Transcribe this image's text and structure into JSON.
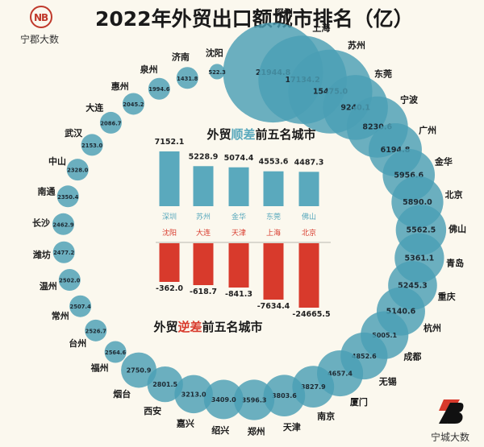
{
  "header": {
    "title": "2022年外贸出口额城市排名（亿）",
    "brand_left": "宁郡大数",
    "brand_right": "宁城大数"
  },
  "colors": {
    "bubble": "#4a9fb5",
    "surplus_bar": "#5aa9bd",
    "deficit_bar": "#d83a2c",
    "title_surplus_accent": "#5aa9bd",
    "title_deficit_accent": "#d83a2c",
    "background": "#fbf8ee"
  },
  "chart_data": [
    {
      "type": "bubble",
      "title": "2022年外贸出口额城市排名（亿）",
      "unit": "亿",
      "layout": "ring",
      "cities": [
        {
          "name": "深圳",
          "value": 21944.8
        },
        {
          "name": "上海",
          "value": 17134.2
        },
        {
          "name": "苏州",
          "value": 15475.0
        },
        {
          "name": "东莞",
          "value": 9240.1
        },
        {
          "name": "宁波",
          "value": 8230.6
        },
        {
          "name": "广州",
          "value": 6194.8
        },
        {
          "name": "金华",
          "value": 5956.6
        },
        {
          "name": "北京",
          "value": 5890.0
        },
        {
          "name": "佛山",
          "value": 5562.5
        },
        {
          "name": "青岛",
          "value": 5361.1
        },
        {
          "name": "重庆",
          "value": 5245.3
        },
        {
          "name": "杭州",
          "value": 5140.6
        },
        {
          "name": "成都",
          "value": 5005.1
        },
        {
          "name": "无锡",
          "value": 4852.6
        },
        {
          "name": "厦门",
          "value": 4657.4
        },
        {
          "name": "南京",
          "value": 3827.9
        },
        {
          "name": "天津",
          "value": 3803.6
        },
        {
          "name": "郑州",
          "value": 3596.3
        },
        {
          "name": "绍兴",
          "value": 3409.0
        },
        {
          "name": "嘉兴",
          "value": 3213.0
        },
        {
          "name": "西安",
          "value": 2801.5
        },
        {
          "name": "烟台",
          "value": 2750.9
        },
        {
          "name": "福州",
          "value": 2564.6
        },
        {
          "name": "台州",
          "value": 2526.7
        },
        {
          "name": "常州",
          "value": 2507.4
        },
        {
          "name": "温州",
          "value": 2502.0
        },
        {
          "name": "潍坊",
          "value": 2477.2
        },
        {
          "name": "长沙",
          "value": 2462.9
        },
        {
          "name": "南通",
          "value": 2350.4
        },
        {
          "name": "中山",
          "value": 2328.0
        },
        {
          "name": "武汉",
          "value": 2153.0
        },
        {
          "name": "大连",
          "value": 2086.7
        },
        {
          "name": "惠州",
          "value": 2045.2
        },
        {
          "name": "泉州",
          "value": 1994.6
        },
        {
          "name": "济南",
          "value": 1431.8
        },
        {
          "name": "沈阳",
          "value": 522.3
        }
      ]
    },
    {
      "type": "bar",
      "title_parts": [
        "外贸",
        "顺差",
        "前五名城市"
      ],
      "categories": [
        "深圳",
        "苏州",
        "金华",
        "东莞",
        "佛山"
      ],
      "values": [
        7152.1,
        5228.9,
        5074.4,
        4553.6,
        4487.3
      ],
      "value_labels": [
        "7152.1",
        "5228.9",
        "5074.4",
        "4553.6",
        "4487.3"
      ]
    },
    {
      "type": "bar",
      "title_parts": [
        "外贸",
        "逆差",
        "前五名城市"
      ],
      "categories": [
        "沈阳",
        "大连",
        "天津",
        "上海",
        "北京"
      ],
      "values": [
        -362.0,
        -618.7,
        -841.3,
        -7634.4,
        -24665.5
      ],
      "value_labels": [
        "-362.0",
        "-618.7",
        "-841.3",
        "-7634.4",
        "-24665.5"
      ]
    }
  ]
}
